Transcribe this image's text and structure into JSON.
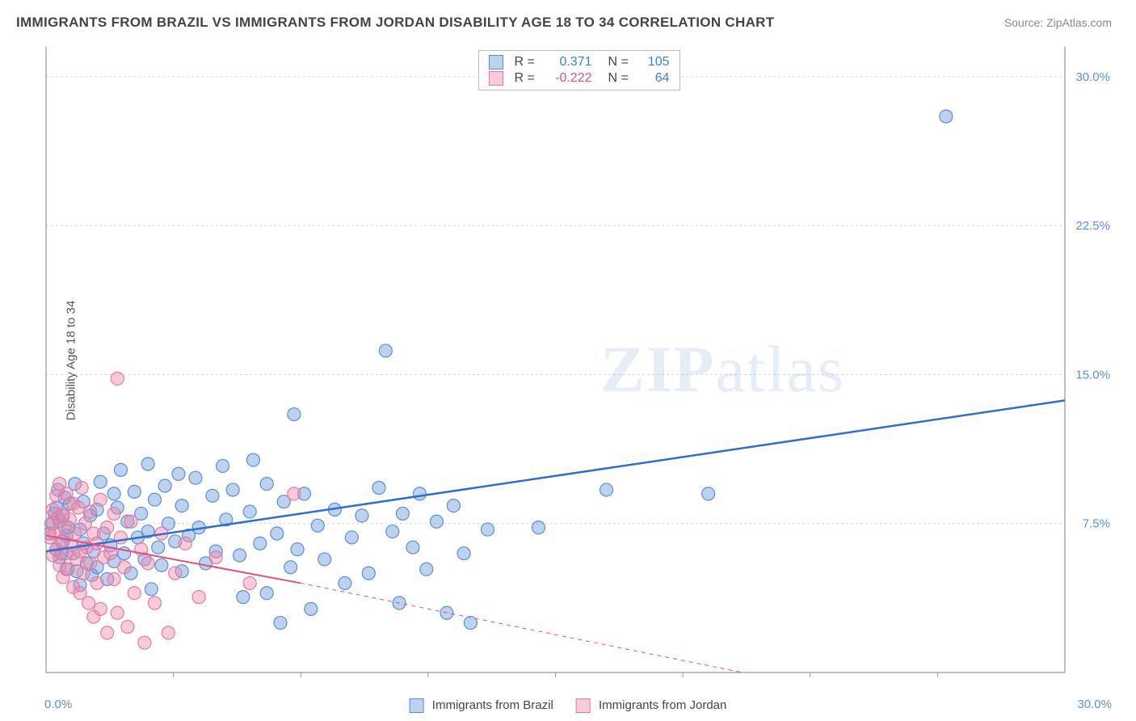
{
  "title": "IMMIGRANTS FROM BRAZIL VS IMMIGRANTS FROM JORDAN DISABILITY AGE 18 TO 34 CORRELATION CHART",
  "source_label": "Source:",
  "source_name": "ZipAtlas.com",
  "ylabel": "Disability Age 18 to 34",
  "watermark_bold": "ZIP",
  "watermark_light": "atlas",
  "chart": {
    "type": "scatter",
    "background_color": "#ffffff",
    "grid_color": "#d6d6d6",
    "axis_color": "#969696",
    "tick_color": "#969696",
    "xlim": [
      0,
      30
    ],
    "ylim": [
      0,
      31.5
    ],
    "x_origin_label": "0.0%",
    "x_max_label": "30.0%",
    "y_ticks": [
      7.5,
      15.0,
      22.5,
      30.0
    ],
    "y_tick_labels": [
      "7.5%",
      "15.0%",
      "22.5%",
      "30.0%"
    ],
    "y_tick_color": "#5a8fd6",
    "x_minor_ticks": [
      3.75,
      7.5,
      11.25,
      15.0,
      18.75,
      22.5,
      26.25
    ],
    "label_fontsize": 15
  },
  "series": [
    {
      "name": "Immigrants from Brazil",
      "color_fill": "rgba(106,156,220,0.45)",
      "color_stroke": "#5a8fd6",
      "marker_radius": 8,
      "r_value": "0.371",
      "r_color": "#3d7fd6",
      "n_value": "105",
      "n_color": "#3d7fd6",
      "regression": {
        "color": "#2f6fd0",
        "width": 2.5,
        "x0": 0,
        "y0": 6.1,
        "x_solid_end": 30,
        "y_solid_end": 13.7,
        "x_dash_end": 30,
        "y_dash_end": 13.7
      },
      "points": [
        [
          0.1,
          7.0
        ],
        [
          0.2,
          7.5
        ],
        [
          0.25,
          8.0
        ],
        [
          0.3,
          6.2
        ],
        [
          0.3,
          8.3
        ],
        [
          0.35,
          9.2
        ],
        [
          0.4,
          5.8
        ],
        [
          0.4,
          7.6
        ],
        [
          0.45,
          6.0
        ],
        [
          0.5,
          6.6
        ],
        [
          0.5,
          7.9
        ],
        [
          0.55,
          8.8
        ],
        [
          0.6,
          5.2
        ],
        [
          0.6,
          6.9
        ],
        [
          0.65,
          7.3
        ],
        [
          0.7,
          8.5
        ],
        [
          0.8,
          6.0
        ],
        [
          0.85,
          9.5
        ],
        [
          0.9,
          5.1
        ],
        [
          1.0,
          4.4
        ],
        [
          1.0,
          7.2
        ],
        [
          1.1,
          6.5
        ],
        [
          1.1,
          8.6
        ],
        [
          1.2,
          5.5
        ],
        [
          1.3,
          7.9
        ],
        [
          1.35,
          4.9
        ],
        [
          1.4,
          6.1
        ],
        [
          1.5,
          8.2
        ],
        [
          1.5,
          5.3
        ],
        [
          1.6,
          9.6
        ],
        [
          1.7,
          7.0
        ],
        [
          1.8,
          4.7
        ],
        [
          1.9,
          6.4
        ],
        [
          2.0,
          9.0
        ],
        [
          2.0,
          5.6
        ],
        [
          2.1,
          8.3
        ],
        [
          2.2,
          10.2
        ],
        [
          2.3,
          6.0
        ],
        [
          2.4,
          7.6
        ],
        [
          2.5,
          5.0
        ],
        [
          2.6,
          9.1
        ],
        [
          2.7,
          6.8
        ],
        [
          2.8,
          8.0
        ],
        [
          2.9,
          5.7
        ],
        [
          3.0,
          10.5
        ],
        [
          3.0,
          7.1
        ],
        [
          3.1,
          4.2
        ],
        [
          3.2,
          8.7
        ],
        [
          3.3,
          6.3
        ],
        [
          3.4,
          5.4
        ],
        [
          3.5,
          9.4
        ],
        [
          3.6,
          7.5
        ],
        [
          3.8,
          6.6
        ],
        [
          3.9,
          10.0
        ],
        [
          4.0,
          5.1
        ],
        [
          4.0,
          8.4
        ],
        [
          4.2,
          6.9
        ],
        [
          4.4,
          9.8
        ],
        [
          4.5,
          7.3
        ],
        [
          4.7,
          5.5
        ],
        [
          4.9,
          8.9
        ],
        [
          5.0,
          6.1
        ],
        [
          5.2,
          10.4
        ],
        [
          5.3,
          7.7
        ],
        [
          5.5,
          9.2
        ],
        [
          5.7,
          5.9
        ],
        [
          5.8,
          3.8
        ],
        [
          6.0,
          8.1
        ],
        [
          6.1,
          10.7
        ],
        [
          6.3,
          6.5
        ],
        [
          6.5,
          9.5
        ],
        [
          6.5,
          4.0
        ],
        [
          6.8,
          7.0
        ],
        [
          6.9,
          2.5
        ],
        [
          7.0,
          8.6
        ],
        [
          7.2,
          5.3
        ],
        [
          7.3,
          13.0
        ],
        [
          7.4,
          6.2
        ],
        [
          7.6,
          9.0
        ],
        [
          7.8,
          3.2
        ],
        [
          8.0,
          7.4
        ],
        [
          8.2,
          5.7
        ],
        [
          8.5,
          8.2
        ],
        [
          8.8,
          4.5
        ],
        [
          9.0,
          6.8
        ],
        [
          9.3,
          7.9
        ],
        [
          9.5,
          5.0
        ],
        [
          9.8,
          9.3
        ],
        [
          10.0,
          16.2
        ],
        [
          10.2,
          7.1
        ],
        [
          10.4,
          3.5
        ],
        [
          10.5,
          8.0
        ],
        [
          10.8,
          6.3
        ],
        [
          11.0,
          9.0
        ],
        [
          11.2,
          5.2
        ],
        [
          11.5,
          7.6
        ],
        [
          11.8,
          3.0
        ],
        [
          12.0,
          8.4
        ],
        [
          12.3,
          6.0
        ],
        [
          12.5,
          2.5
        ],
        [
          13.0,
          7.2
        ],
        [
          14.5,
          7.3
        ],
        [
          16.5,
          9.2
        ],
        [
          19.5,
          9.0
        ],
        [
          26.5,
          28.0
        ]
      ]
    },
    {
      "name": "Immigrants from Jordan",
      "color_fill": "rgba(240,140,170,0.45)",
      "color_stroke": "#e67aa0",
      "marker_radius": 8,
      "r_value": "-0.222",
      "r_color": "#e05080",
      "n_value": "64",
      "n_color": "#3d7fd6",
      "regression": {
        "color": "#e05080",
        "width": 2,
        "x0": 0,
        "y0": 6.9,
        "x_solid_end": 7.5,
        "y_solid_end": 4.5,
        "x_dash_end": 20.5,
        "y_dash_end": 0.0
      },
      "points": [
        [
          0.1,
          6.8
        ],
        [
          0.15,
          7.5
        ],
        [
          0.2,
          8.2
        ],
        [
          0.2,
          5.9
        ],
        [
          0.25,
          7.0
        ],
        [
          0.3,
          8.9
        ],
        [
          0.3,
          6.2
        ],
        [
          0.35,
          7.8
        ],
        [
          0.4,
          5.4
        ],
        [
          0.4,
          9.5
        ],
        [
          0.45,
          6.6
        ],
        [
          0.5,
          8.0
        ],
        [
          0.5,
          4.8
        ],
        [
          0.55,
          7.3
        ],
        [
          0.6,
          6.0
        ],
        [
          0.6,
          9.0
        ],
        [
          0.65,
          5.2
        ],
        [
          0.7,
          7.7
        ],
        [
          0.75,
          6.4
        ],
        [
          0.8,
          8.5
        ],
        [
          0.8,
          4.3
        ],
        [
          0.85,
          7.0
        ],
        [
          0.9,
          5.7
        ],
        [
          0.95,
          8.3
        ],
        [
          1.0,
          6.1
        ],
        [
          1.0,
          4.0
        ],
        [
          1.05,
          9.3
        ],
        [
          1.1,
          5.0
        ],
        [
          1.15,
          7.5
        ],
        [
          1.2,
          6.3
        ],
        [
          1.25,
          3.5
        ],
        [
          1.3,
          8.1
        ],
        [
          1.3,
          5.5
        ],
        [
          1.4,
          7.0
        ],
        [
          1.4,
          2.8
        ],
        [
          1.5,
          6.5
        ],
        [
          1.5,
          4.5
        ],
        [
          1.6,
          8.7
        ],
        [
          1.6,
          3.2
        ],
        [
          1.7,
          5.8
        ],
        [
          1.8,
          7.3
        ],
        [
          1.8,
          2.0
        ],
        [
          1.9,
          6.0
        ],
        [
          2.0,
          4.7
        ],
        [
          2.0,
          8.0
        ],
        [
          2.1,
          14.8
        ],
        [
          2.1,
          3.0
        ],
        [
          2.2,
          6.8
        ],
        [
          2.3,
          5.3
        ],
        [
          2.4,
          2.3
        ],
        [
          2.5,
          7.6
        ],
        [
          2.6,
          4.0
        ],
        [
          2.8,
          6.2
        ],
        [
          2.9,
          1.5
        ],
        [
          3.0,
          5.5
        ],
        [
          3.2,
          3.5
        ],
        [
          3.4,
          7.0
        ],
        [
          3.6,
          2.0
        ],
        [
          3.8,
          5.0
        ],
        [
          4.1,
          6.5
        ],
        [
          4.5,
          3.8
        ],
        [
          5.0,
          5.8
        ],
        [
          6.0,
          4.5
        ],
        [
          7.3,
          9.0
        ]
      ]
    }
  ],
  "bottom_legend": [
    {
      "label": "Immigrants from Brazil",
      "fill": "rgba(106,156,220,0.45)",
      "stroke": "#5a8fd6"
    },
    {
      "label": "Immigrants from Jordan",
      "fill": "rgba(240,140,170,0.45)",
      "stroke": "#e67aa0"
    }
  ],
  "legend_labels": {
    "r": "R =",
    "n": "N ="
  }
}
